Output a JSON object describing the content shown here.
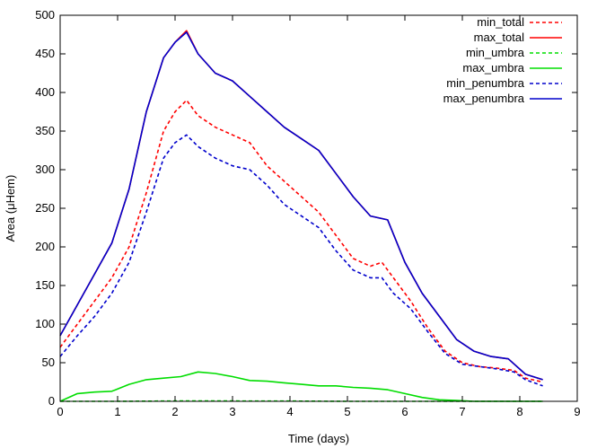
{
  "chart_data": {
    "type": "line",
    "title": "",
    "xlabel": "Time (days)",
    "ylabel": "Area (μHem)",
    "xlim": [
      0,
      9
    ],
    "ylim": [
      0,
      500
    ],
    "xticks": [
      0,
      1,
      2,
      3,
      4,
      5,
      6,
      7,
      8,
      9
    ],
    "yticks": [
      0,
      50,
      100,
      150,
      200,
      250,
      300,
      350,
      400,
      450,
      500
    ],
    "grid": false,
    "legend_position": "top-right",
    "series": [
      {
        "name": "min_total",
        "color": "#ff0000",
        "dash": true,
        "x": [
          0,
          0.3,
          0.6,
          0.9,
          1.2,
          1.5,
          1.8,
          2.0,
          2.2,
          2.4,
          2.7,
          3.0,
          3.3,
          3.6,
          3.9,
          4.2,
          4.5,
          4.8,
          5.1,
          5.4,
          5.6,
          5.8,
          6.1,
          6.4,
          6.7,
          7.0,
          7.3,
          7.6,
          7.9,
          8.1,
          8.4
        ],
        "y": [
          70,
          100,
          130,
          160,
          200,
          270,
          350,
          375,
          390,
          370,
          355,
          345,
          335,
          305,
          285,
          265,
          245,
          215,
          185,
          175,
          180,
          160,
          130,
          95,
          65,
          50,
          45,
          43,
          40,
          30,
          25
        ]
      },
      {
        "name": "max_total",
        "color": "#ff0000",
        "dash": false,
        "x": [
          0,
          0.3,
          0.6,
          0.9,
          1.2,
          1.5,
          1.8,
          2.0,
          2.2,
          2.4,
          2.7,
          3.0,
          3.3,
          3.6,
          3.9,
          4.2,
          4.5,
          4.8,
          5.1,
          5.4,
          5.7,
          6.0,
          6.3,
          6.6,
          6.9,
          7.2,
          7.5,
          7.8,
          8.1,
          8.4
        ],
        "y": [
          85,
          125,
          165,
          205,
          275,
          375,
          445,
          465,
          480,
          450,
          425,
          415,
          395,
          375,
          355,
          340,
          325,
          295,
          265,
          240,
          235,
          180,
          140,
          110,
          80,
          65,
          58,
          55,
          35,
          28
        ]
      },
      {
        "name": "min_umbra",
        "color": "#00dd00",
        "dash": true,
        "x": [
          0,
          1,
          2,
          3,
          4,
          5,
          6,
          7,
          8,
          8.4
        ],
        "y": [
          0,
          0,
          0.5,
          0.5,
          0.3,
          0,
          0,
          0,
          0,
          0
        ]
      },
      {
        "name": "max_umbra",
        "color": "#00dd00",
        "dash": false,
        "x": [
          0,
          0.3,
          0.6,
          0.9,
          1.2,
          1.5,
          1.8,
          2.1,
          2.4,
          2.7,
          3.0,
          3.3,
          3.6,
          3.9,
          4.2,
          4.5,
          4.8,
          5.1,
          5.4,
          5.7,
          6.0,
          6.3,
          6.6,
          6.9,
          7.2,
          7.5,
          8.0,
          8.4
        ],
        "y": [
          0,
          10,
          12,
          13,
          22,
          28,
          30,
          32,
          38,
          36,
          32,
          27,
          26,
          24,
          22,
          20,
          20,
          18,
          17,
          15,
          10,
          5,
          2,
          1,
          0,
          0,
          0,
          0
        ]
      },
      {
        "name": "min_penumbra",
        "color": "#0000cc",
        "dash": true,
        "x": [
          0,
          0.3,
          0.6,
          0.9,
          1.2,
          1.5,
          1.8,
          2.0,
          2.2,
          2.4,
          2.7,
          3.0,
          3.3,
          3.6,
          3.9,
          4.2,
          4.5,
          4.8,
          5.1,
          5.4,
          5.6,
          5.8,
          6.1,
          6.4,
          6.7,
          7.0,
          7.3,
          7.6,
          7.9,
          8.1,
          8.4
        ],
        "y": [
          58,
          85,
          110,
          140,
          180,
          245,
          315,
          335,
          345,
          330,
          315,
          305,
          300,
          280,
          255,
          240,
          225,
          195,
          170,
          160,
          160,
          140,
          120,
          90,
          62,
          48,
          45,
          42,
          38,
          28,
          20
        ]
      },
      {
        "name": "max_penumbra",
        "color": "#0000cc",
        "dash": false,
        "x": [
          0,
          0.3,
          0.6,
          0.9,
          1.2,
          1.5,
          1.8,
          2.0,
          2.2,
          2.4,
          2.7,
          3.0,
          3.3,
          3.6,
          3.9,
          4.2,
          4.5,
          4.8,
          5.1,
          5.4,
          5.7,
          6.0,
          6.3,
          6.6,
          6.9,
          7.2,
          7.5,
          7.8,
          8.1,
          8.4
        ],
        "y": [
          85,
          125,
          165,
          205,
          275,
          375,
          445,
          465,
          478,
          450,
          425,
          415,
          395,
          375,
          355,
          340,
          325,
          295,
          265,
          240,
          235,
          180,
          140,
          110,
          80,
          65,
          58,
          55,
          35,
          28
        ]
      }
    ]
  }
}
